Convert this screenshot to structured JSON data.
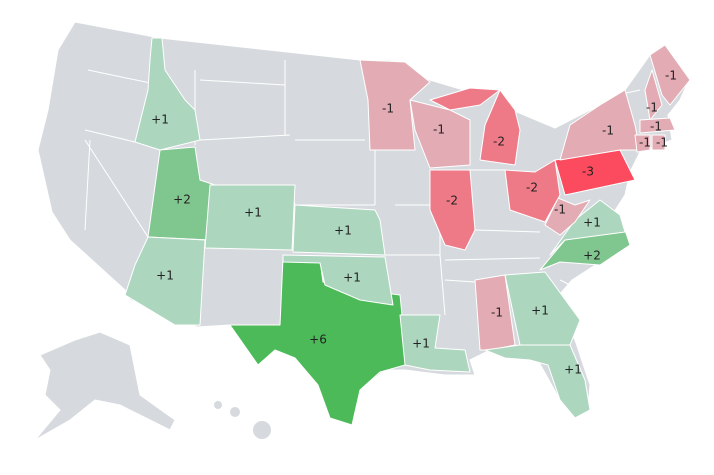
{
  "regions": [
    {
      "value": 1,
      "label": "+1",
      "color": "#acd6be"
    },
    {
      "value": 2,
      "label": "+2",
      "color": "#80c68f"
    },
    {
      "value": 1,
      "label": "+1",
      "color": "#acd6be"
    },
    {
      "value": 1,
      "label": "+1",
      "color": "#acd6be"
    },
    {
      "value": 6,
      "label": "+6",
      "color": "#4dba59"
    },
    {
      "value": 1,
      "label": "+1",
      "color": "#acd6be"
    },
    {
      "value": 1,
      "label": "+1",
      "color": "#acd6be"
    },
    {
      "value": 1,
      "label": "+1",
      "color": "#acd6be"
    },
    {
      "value": -1,
      "label": "-1",
      "color": "#e3abb3"
    },
    {
      "value": 1,
      "label": "+1",
      "color": "#acd6be"
    },
    {
      "value": 1,
      "label": "+1",
      "color": "#acd6be"
    },
    {
      "value": 2,
      "label": "+2",
      "color": "#80c68f"
    },
    {
      "value": 1,
      "label": "+1",
      "color": "#acd6be"
    },
    {
      "value": -1,
      "label": "-1",
      "color": "#e3abb3"
    },
    {
      "value": -2,
      "label": "-2",
      "color": "#ef7a87"
    },
    {
      "value": -3,
      "label": "-3",
      "color": "#fc4a5f"
    },
    {
      "value": -2,
      "label": "-2",
      "color": "#ef7a87"
    },
    {
      "value": -2,
      "label": "-2",
      "color": "#ef7a87"
    },
    {
      "value": -1,
      "label": "-1",
      "color": "#e3abb3"
    },
    {
      "value": -1,
      "label": "-1",
      "color": "#e3abb3"
    },
    {
      "value": -1,
      "label": "-1",
      "color": "#e3abb3"
    },
    {
      "value": -1,
      "label": "-1",
      "color": "#e3abb3"
    },
    {
      "value": -1,
      "label": "-1",
      "color": "#e3abb3"
    },
    {
      "value": -1,
      "label": "-1",
      "color": "#e3abb3"
    },
    {
      "value": -1,
      "label": "-1",
      "color": "#e3abb3"
    },
    {
      "value": -1,
      "label": "-1",
      "color": "#e3abb3"
    }
  ]
}
